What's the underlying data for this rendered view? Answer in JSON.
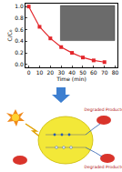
{
  "chart_data": {
    "type": "line",
    "x": [
      0,
      10,
      20,
      30,
      40,
      50,
      60,
      70
    ],
    "values": [
      1.0,
      0.65,
      0.45,
      0.3,
      0.2,
      0.12,
      0.07,
      0.04
    ],
    "color": "#e3262b",
    "marker": "square",
    "line_style": "solid",
    "x_label": "Time (min)",
    "y_label": "C/C₀",
    "xlim": [
      -3,
      82
    ],
    "xticks": [
      0,
      10,
      20,
      30,
      40,
      50,
      60,
      70,
      80
    ],
    "ylim": [
      -0.05,
      1.05
    ],
    "yticks": [
      {
        "value": 0,
        "label": "0.0"
      },
      {
        "value": 0.2,
        "label": "0.2"
      },
      {
        "value": 0.4,
        "label": "0.4"
      },
      {
        "value": 0.6,
        "label": "0.6"
      },
      {
        "value": 0.8,
        "label": "0.8"
      },
      {
        "value": 1,
        "label": "1.0"
      }
    ],
    "grid": false
  },
  "diagram": {
    "labels": [
      "Degraded Products",
      "Degraded Products"
    ]
  }
}
